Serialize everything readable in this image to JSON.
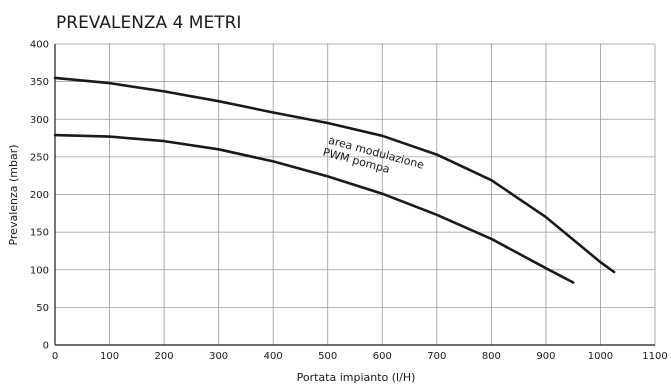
{
  "chart_data": {
    "type": "line",
    "title": "PREVALENZA 4 METRI",
    "xlabel": "Portata impianto (l/H)",
    "ylabel": "Prevalenza (mbar)",
    "xlim": [
      0,
      1100
    ],
    "ylim": [
      0,
      400
    ],
    "xticks": [
      0,
      100,
      200,
      300,
      400,
      500,
      600,
      700,
      800,
      900,
      1000,
      1100
    ],
    "yticks": [
      0,
      50,
      100,
      150,
      200,
      250,
      300,
      350,
      400
    ],
    "grid": true,
    "colors": {
      "line": "#1a1a1a",
      "grid": "#9a9a9a"
    },
    "series": [
      {
        "x": [
          0,
          100,
          200,
          300,
          400,
          500,
          600,
          700,
          800,
          900,
          1000,
          1025
        ],
        "y": [
          355,
          348,
          337,
          324,
          309,
          295,
          278,
          253,
          219,
          170,
          110,
          97
        ]
      },
      {
        "x": [
          0,
          100,
          200,
          300,
          400,
          500,
          600,
          700,
          800,
          900,
          950
        ],
        "y": [
          279,
          277,
          271,
          260,
          244,
          224,
          201,
          173,
          141,
          102,
          83
        ]
      }
    ],
    "annotations": [
      {
        "text": "area modulazione",
        "x": 500,
        "y": 268
      },
      {
        "text": "PWM pompa",
        "x": 490,
        "y": 252
      }
    ]
  }
}
